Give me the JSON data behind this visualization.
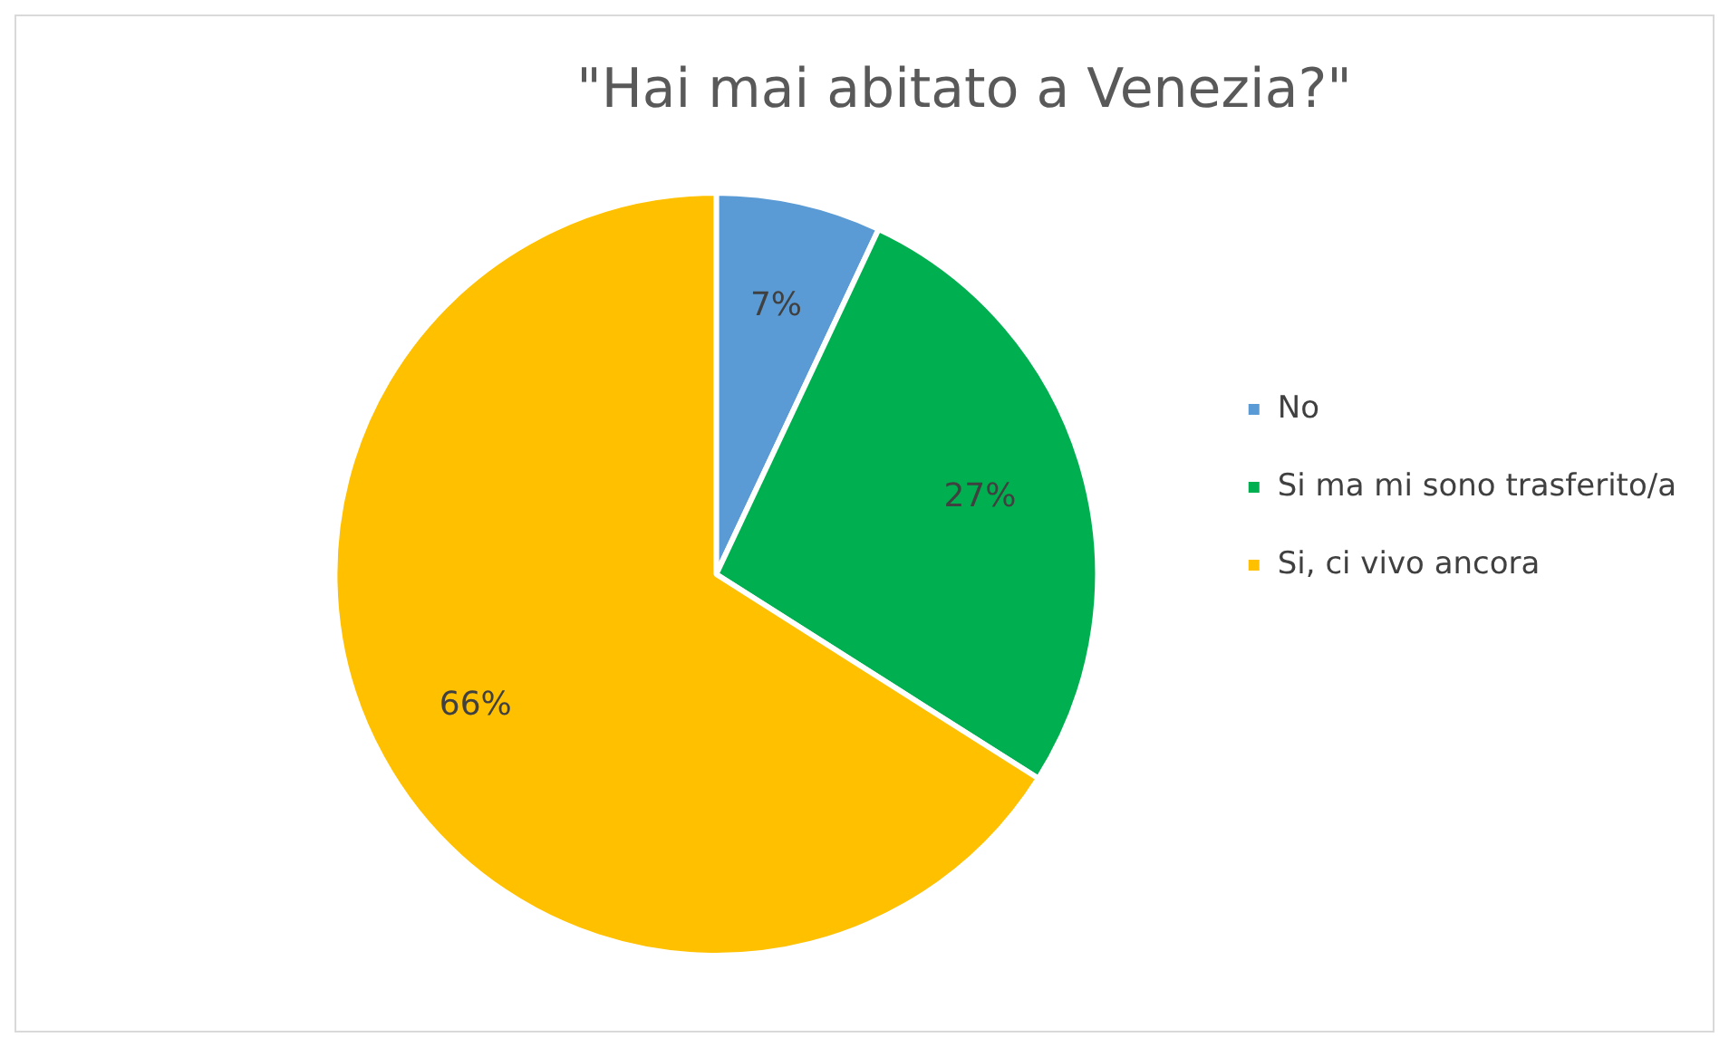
{
  "chart_data": {
    "type": "pie",
    "title": "\"Hai mai abitato a Venezia?\"",
    "categories": [
      "No",
      "Si ma mi sono trasferito/a",
      "Si, ci vivo ancora"
    ],
    "values": [
      7,
      27,
      66
    ],
    "value_labels": [
      "7%",
      "27%",
      "66%"
    ],
    "colors": [
      "#5b9bd5",
      "#00b050",
      "#ffc000"
    ],
    "legend": "right"
  }
}
